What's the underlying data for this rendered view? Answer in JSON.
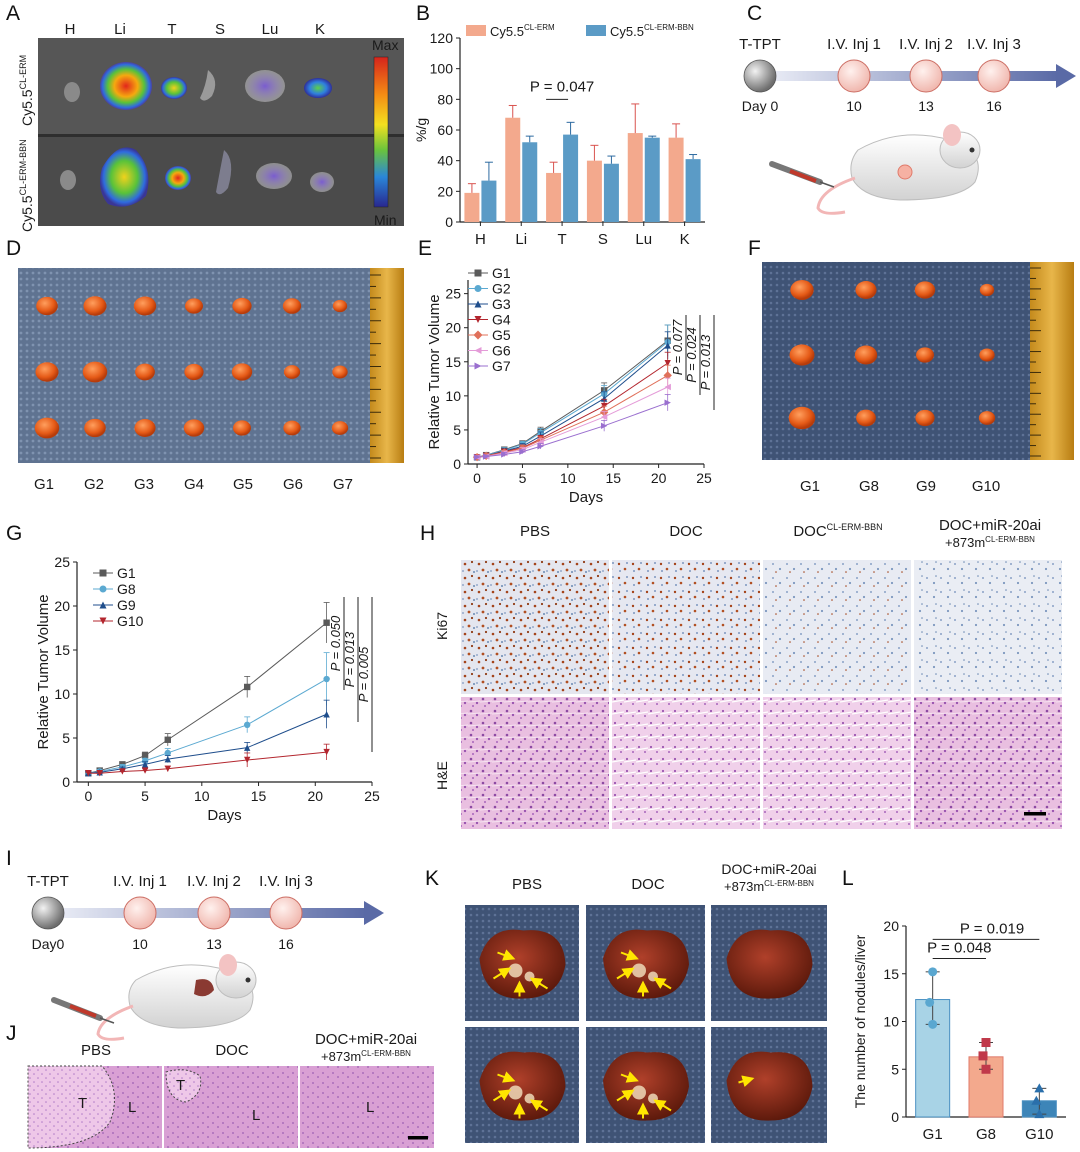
{
  "panel_labels": [
    "A",
    "B",
    "C",
    "D",
    "E",
    "F",
    "G",
    "H",
    "I",
    "J",
    "K",
    "L"
  ],
  "panelA": {
    "organs": [
      "H",
      "Li",
      "T",
      "S",
      "Lu",
      "K"
    ],
    "row1_base": "Cy5.5",
    "row1_sup": "CL-ERM",
    "row2_base": "Cy5.5",
    "row2_sup": "CL-ERM-BBN",
    "scale_max": "Max",
    "scale_min": "Min"
  },
  "panelC": {
    "start_label": "T-TPT",
    "start_day": "Day 0",
    "injections": [
      {
        "label": "I.V. Inj 1",
        "day": "10"
      },
      {
        "label": "I.V. Inj 2",
        "day": "13"
      },
      {
        "label": "I.V. Inj 3",
        "day": "16"
      }
    ]
  },
  "panelD": {
    "groups": [
      "G1",
      "G2",
      "G3",
      "G4",
      "G5",
      "G6",
      "G7"
    ]
  },
  "panelF": {
    "groups": [
      "G1",
      "G8",
      "G9",
      "G10"
    ]
  },
  "panelH": {
    "columns": [
      {
        "base": "PBS",
        "sup": "",
        "line2base": "",
        "line2sup": ""
      },
      {
        "base": "DOC",
        "sup": "",
        "line2base": "",
        "line2sup": ""
      },
      {
        "base": "DOC",
        "sup": "CL-ERM-BBN",
        "line2base": "",
        "line2sup": ""
      },
      {
        "base": "DOC+miR-20ai",
        "sup": "",
        "line2base": "+873m",
        "line2sup": "CL-ERM-BBN"
      }
    ],
    "rows": [
      "Ki67",
      "H&E"
    ]
  },
  "panelI": {
    "start_label": "T-TPT",
    "start_day": "Day0",
    "injections": [
      {
        "label": "I.V. Inj 1",
        "day": "10"
      },
      {
        "label": "I.V. Inj 2",
        "day": "13"
      },
      {
        "label": "I.V. Inj 3",
        "day": "16"
      }
    ]
  },
  "panelJ": {
    "columns": [
      "PBS",
      "DOC",
      "DOC+miR-20ai"
    ],
    "col3_line2base": "+873m",
    "col3_line2sup": "CL-ERM-BBN",
    "tumor_label": "T",
    "liver_label": "L"
  },
  "panelK": {
    "columns": [
      "PBS",
      "DOC",
      "DOC+miR-20ai"
    ],
    "col3_line2base": "+873m",
    "col3_line2sup": "CL-ERM-BBN"
  },
  "colors": {
    "salmon": "#f3a98d",
    "blue": "#5b9bc6",
    "error_red": "#d9534f",
    "histo_pink": "#e8b8dc",
    "ki67_blue": "#dfe6f0",
    "liver_red": "#8a2a16",
    "arrow_yellow": "#ffe600",
    "tumor_orange": "#e05a1c"
  },
  "chart_data": [
    {
      "id": "B",
      "type": "bar",
      "categories": [
        "H",
        "Li",
        "T",
        "S",
        "Lu",
        "K"
      ],
      "series": [
        {
          "name": "Cy5.5",
          "name_sup": "CL-ERM",
          "color": "#f3a98d",
          "values": [
            19,
            68,
            32,
            40,
            58,
            55
          ],
          "errors": [
            6,
            8,
            7,
            10,
            19,
            9
          ]
        },
        {
          "name": "Cy5.5",
          "name_sup": "CL-ERM-BBN",
          "color": "#5b9bc6",
          "values": [
            27,
            52,
            57,
            38,
            55,
            41
          ],
          "errors": [
            12,
            4,
            8,
            5,
            1,
            3
          ]
        }
      ],
      "ylabel": "%/g",
      "ylim": [
        0,
        120
      ],
      "yticks": [
        0,
        20,
        40,
        60,
        80,
        100,
        120
      ],
      "annotation": {
        "text": "P = 0.047",
        "between": "T"
      }
    },
    {
      "id": "E",
      "type": "line",
      "x": [
        0,
        1,
        3,
        5,
        7,
        14,
        21
      ],
      "series": [
        {
          "name": "G1",
          "color": "#5a5a5a",
          "marker": "square",
          "values": [
            1,
            1.3,
            2.1,
            3.0,
            4.8,
            10.8,
            18.1
          ],
          "errors": [
            0.2,
            0.3,
            0.4,
            0.4,
            0.6,
            1.1,
            2.3
          ]
        },
        {
          "name": "G2",
          "color": "#5ba9d1",
          "marker": "circle",
          "values": [
            1,
            1.3,
            2.0,
            2.9,
            4.6,
            10.3,
            17.9
          ],
          "errors": [
            0.2,
            0.3,
            0.4,
            0.4,
            0.6,
            1.2,
            2.5
          ]
        },
        {
          "name": "G3",
          "color": "#1f4e8c",
          "marker": "triangle-up",
          "values": [
            1,
            1.2,
            1.9,
            2.6,
            4.1,
            9.6,
            17.4
          ],
          "errors": [
            0.2,
            0.3,
            0.4,
            0.4,
            0.6,
            1.0,
            2.0
          ]
        },
        {
          "name": "G4",
          "color": "#b3262e",
          "marker": "triangle-down",
          "values": [
            1,
            1.2,
            1.8,
            2.4,
            3.7,
            8.5,
            14.8
          ],
          "errors": [
            0.2,
            0.3,
            0.3,
            0.4,
            0.5,
            1.0,
            1.6
          ]
        },
        {
          "name": "G5",
          "color": "#e0705a",
          "marker": "diamond",
          "values": [
            1,
            1.2,
            1.7,
            2.3,
            3.5,
            7.6,
            13.0
          ],
          "errors": [
            0.2,
            0.3,
            0.3,
            0.4,
            0.5,
            0.9,
            1.5
          ]
        },
        {
          "name": "G6",
          "color": "#e49bd8",
          "marker": "triangle-left",
          "values": [
            1,
            1.1,
            1.6,
            2.1,
            3.2,
            6.9,
            11.3
          ],
          "errors": [
            0.2,
            0.2,
            0.3,
            0.3,
            0.5,
            0.8,
            1.3
          ]
        },
        {
          "name": "G7",
          "color": "#9a6fcf",
          "marker": "triangle-right",
          "values": [
            1,
            1.1,
            1.4,
            1.8,
            2.6,
            5.6,
            9.0
          ],
          "errors": [
            0.2,
            0.2,
            0.3,
            0.3,
            0.4,
            0.8,
            1.2
          ]
        }
      ],
      "xlabel": "Days",
      "ylabel": "Relative Tumor Volume",
      "xlim": [
        -1,
        25
      ],
      "ylim": [
        0,
        27
      ],
      "xticks": [
        0,
        5,
        10,
        15,
        20,
        25
      ],
      "yticks": [
        0,
        5,
        10,
        15,
        20,
        25
      ],
      "annotations": [
        "P = 0.077",
        "P = 0.024",
        "P = 0.013"
      ]
    },
    {
      "id": "G",
      "type": "line",
      "x": [
        0,
        1,
        3,
        5,
        7,
        14,
        21
      ],
      "series": [
        {
          "name": "G1",
          "color": "#5a5a5a",
          "marker": "square",
          "values": [
            1,
            1.3,
            2.0,
            3.0,
            4.8,
            10.8,
            18.1
          ],
          "errors": [
            0.2,
            0.3,
            0.3,
            0.4,
            0.7,
            1.2,
            2.3
          ]
        },
        {
          "name": "G8",
          "color": "#5ba9d1",
          "marker": "circle",
          "values": [
            1,
            1.2,
            1.7,
            2.4,
            3.3,
            6.5,
            11.7
          ],
          "errors": [
            0.2,
            0.2,
            0.3,
            0.3,
            0.5,
            0.9,
            3.0
          ]
        },
        {
          "name": "G9",
          "color": "#1f4e8c",
          "marker": "triangle-up",
          "values": [
            1,
            1.1,
            1.5,
            2.0,
            2.6,
            3.9,
            7.7
          ],
          "errors": [
            0.2,
            0.2,
            0.2,
            0.3,
            0.4,
            0.6,
            1.6
          ]
        },
        {
          "name": "G10",
          "color": "#b3262e",
          "marker": "triangle-down",
          "values": [
            1,
            1.0,
            1.2,
            1.3,
            1.5,
            2.5,
            3.4
          ],
          "errors": [
            0.1,
            0.2,
            0.2,
            0.2,
            0.3,
            0.8,
            0.9
          ]
        }
      ],
      "xlabel": "Days",
      "ylabel": "Relative Tumor Volume",
      "xlim": [
        -1,
        25
      ],
      "ylim": [
        0,
        25
      ],
      "xticks": [
        0,
        5,
        10,
        15,
        20,
        25
      ],
      "yticks": [
        0,
        5,
        10,
        15,
        20,
        25
      ],
      "annotations": [
        "P = 0.050",
        "P = 0.013",
        "P = 0.005"
      ]
    },
    {
      "id": "L",
      "type": "bar",
      "categories": [
        "G1",
        "G8",
        "G10"
      ],
      "values": [
        12.3,
        6.3,
        1.7
      ],
      "points": [
        [
          15.2,
          12.0,
          9.7
        ],
        [
          7.8,
          6.4,
          5.0
        ],
        [
          3.0,
          1.7,
          0.3
        ]
      ],
      "colors": [
        "#a8d3e6",
        "#f3a98d",
        "#3d85b8"
      ],
      "ylabel": "The number of nodules/liver",
      "ylim": [
        0,
        20
      ],
      "yticks": [
        0,
        5,
        10,
        15,
        20
      ],
      "annotations": [
        {
          "text": "P = 0.048",
          "from": "G1",
          "to": "G8"
        },
        {
          "text": "P = 0.019",
          "from": "G1",
          "to": "G10"
        }
      ]
    }
  ]
}
